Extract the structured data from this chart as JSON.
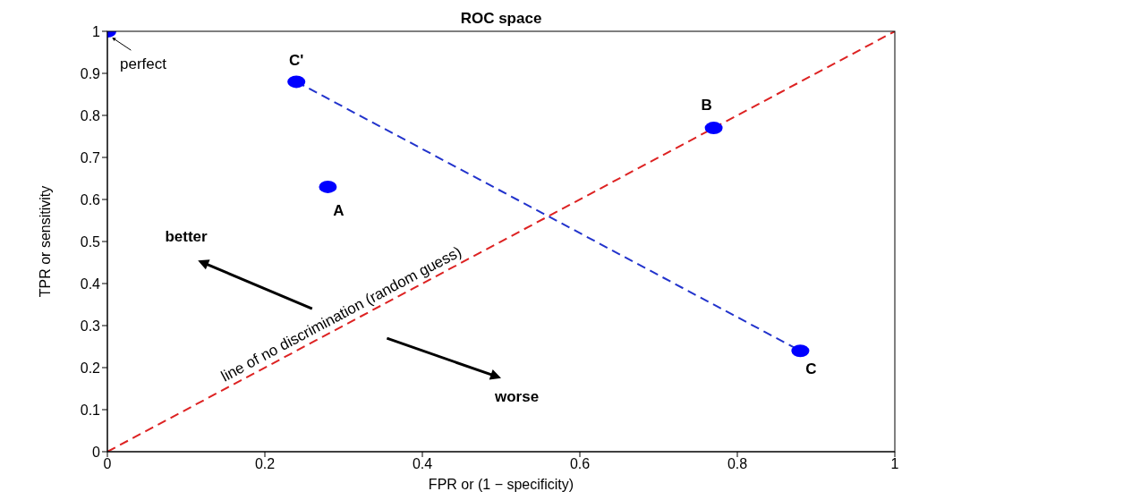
{
  "chart_data": {
    "type": "scatter",
    "title": "ROC space",
    "xlabel": "FPR or (1 − specificity)",
    "ylabel": "TPR or sensitivity",
    "xlim": [
      0,
      1
    ],
    "ylim": [
      0,
      1
    ],
    "xticks": [
      0,
      0.2,
      0.4,
      0.6,
      0.8,
      1
    ],
    "yticks": [
      0,
      0.1,
      0.2,
      0.3,
      0.4,
      0.5,
      0.6,
      0.7,
      0.8,
      0.9,
      1
    ],
    "series": [
      {
        "marker": "circle",
        "color": "#0000ff",
        "x": [
          0,
          0.24,
          0.28,
          0.77,
          0.88
        ],
        "values": [
          1,
          0.88,
          0.63,
          0.77,
          0.24
        ]
      },
      {
        "type": "line",
        "marker": "none",
        "color": "#dd2222",
        "line_style": "dashed",
        "x": [
          0,
          1
        ],
        "values": [
          0,
          1
        ]
      },
      {
        "type": "line",
        "marker": "none",
        "color": "#2233cc",
        "line_style": "dashed",
        "x": [
          0.24,
          0.88
        ],
        "values": [
          0.88,
          0.24
        ]
      }
    ],
    "annotations": [
      {
        "text": "perfect",
        "x": 0,
        "y": 1
      },
      {
        "text": "C'",
        "x": 0.24,
        "y": 0.88
      },
      {
        "text": "A",
        "x": 0.28,
        "y": 0.63
      },
      {
        "text": "B",
        "x": 0.77,
        "y": 0.77
      },
      {
        "text": "C",
        "x": 0.88,
        "y": 0.24
      },
      "better",
      "worse",
      {
        "text": "line of no discrimination (random guess)",
        "x": 0.3,
        "y": 0.3
      }
    ]
  }
}
